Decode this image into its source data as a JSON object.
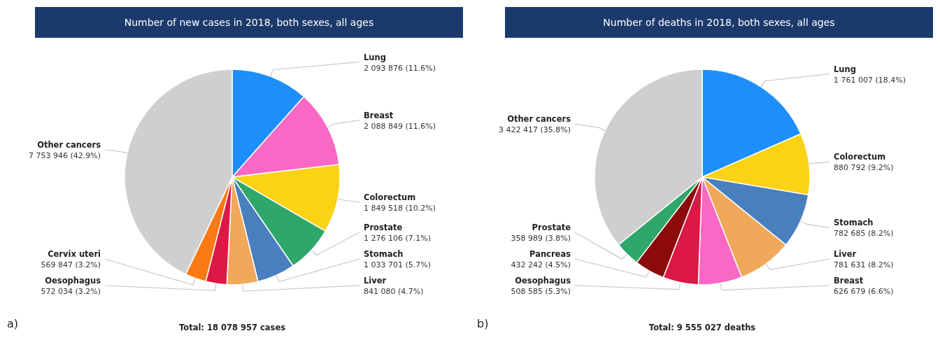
{
  "chart_data": [
    {
      "type": "pie",
      "title": "Number of new cases in 2018, both sexes, all ages",
      "categories": [
        "Lung",
        "Breast",
        "Colorectum",
        "Prostate",
        "Stomach",
        "Liver",
        "Oesophagus",
        "Cervix uteri",
        "Other cancers"
      ],
      "values": [
        2093876,
        2088849,
        1849518,
        1276106,
        1033701,
        841080,
        572034,
        569847,
        7753946
      ],
      "value_labels": [
        "2 093 876 (11.6%)",
        "2 088 849 (11.6%)",
        "1 849 518 (10.2%)",
        "1 276 106 (7.1%)",
        "1 033 701 (5.7%)",
        "841 080 (4.7%)",
        "572 034 (3.2%)",
        "569 847 (3.2%)",
        "7 753 946 (42.9%)"
      ],
      "colors": [
        "#1e8ffa",
        "#f968c4",
        "#fbd214",
        "#2fa76a",
        "#4a7fbf",
        "#f0a85a",
        "#dc1846",
        "#fb7a14",
        "#cfcfcf"
      ],
      "annotations": [
        "a)",
        "Total: 18 078 957 cases"
      ]
    },
    {
      "type": "pie",
      "title": "Number of deaths in 2018, both sexes, all ages",
      "categories": [
        "Lung",
        "Colorectum",
        "Stomach",
        "Liver",
        "Breast",
        "Oesophagus",
        "Pancreas",
        "Prostate",
        "Other cancers"
      ],
      "values": [
        1761007,
        880792,
        782685,
        781631,
        626679,
        508585,
        432242,
        358989,
        3422417
      ],
      "value_labels": [
        "1 761 007 (18.4%)",
        "880 792 (9.2%)",
        "782 685 (8.2%)",
        "781 631 (8.2%)",
        "626 679 (6.6%)",
        "508 585 (5.3%)",
        "432 242 (4.5%)",
        "358 989 (3.8%)",
        "3 422 417 (35.8%)"
      ],
      "colors": [
        "#1e8ffa",
        "#fbd214",
        "#4a7fbf",
        "#f0a85a",
        "#f968c4",
        "#dc1846",
        "#8b0a0a",
        "#2fa76a",
        "#cfcfcf"
      ],
      "annotations": [
        "b)",
        "Total: 9 555 027 deaths"
      ]
    }
  ]
}
